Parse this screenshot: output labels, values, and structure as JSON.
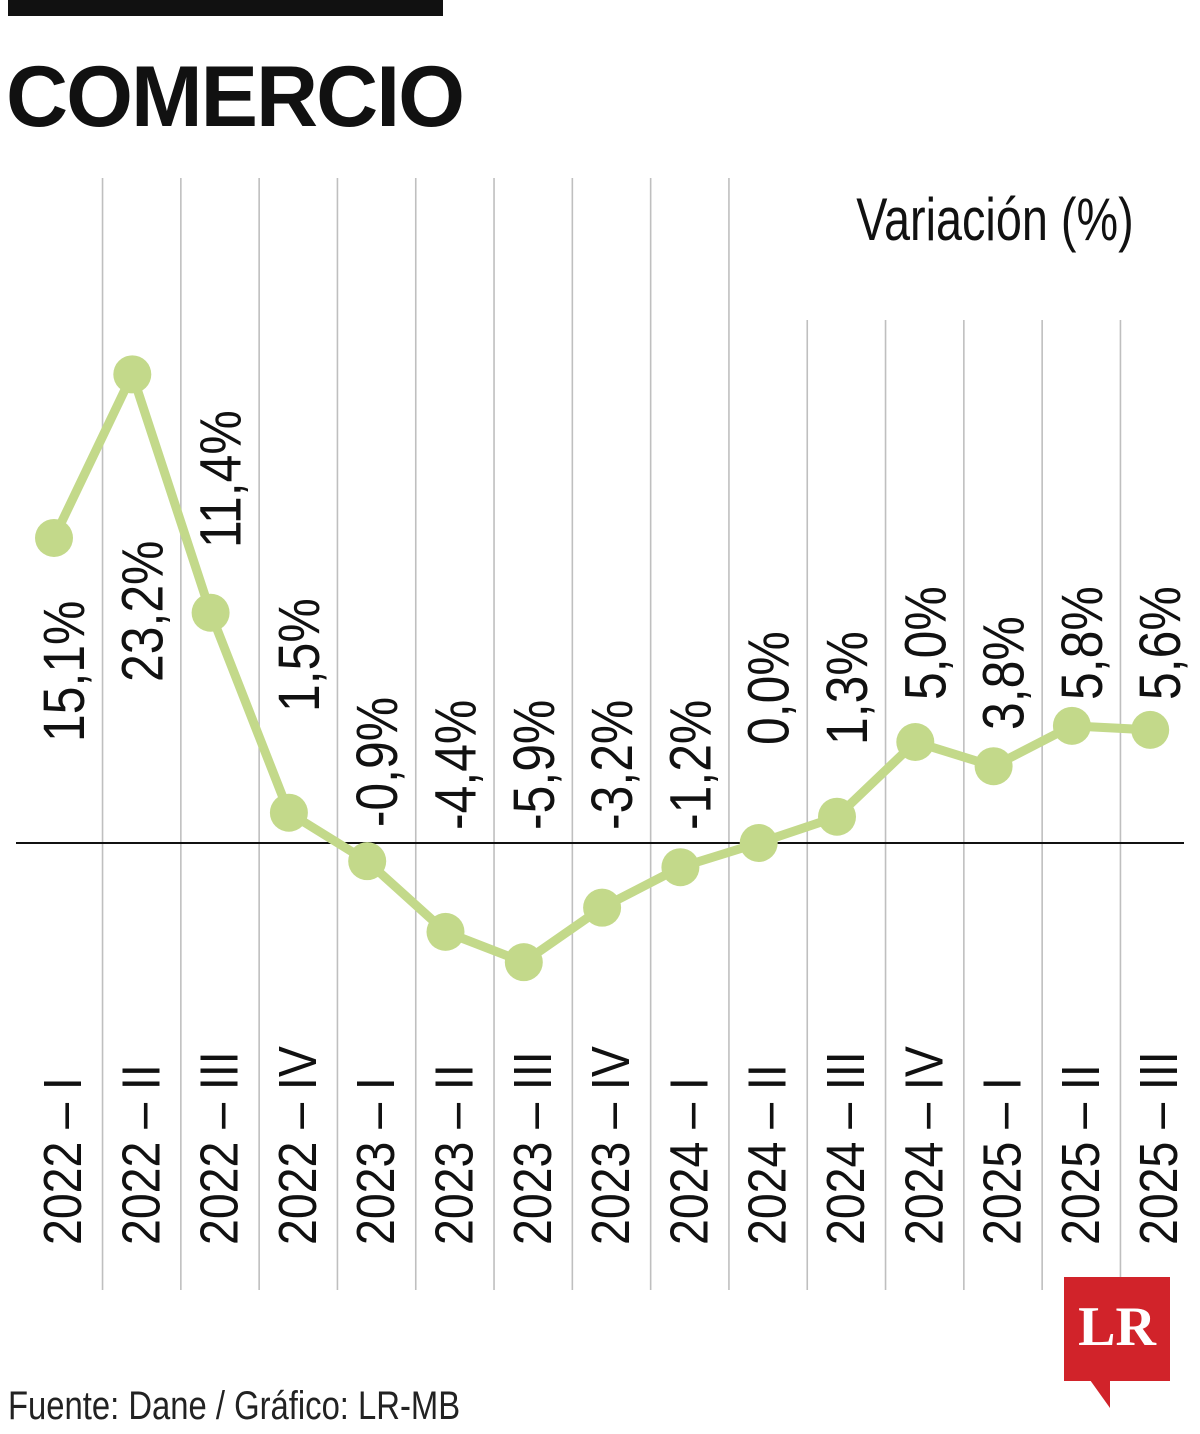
{
  "header": {
    "title": "COMERCIO",
    "unit_label": "Variación (%)"
  },
  "footer": {
    "source": "Fuente: Dane / Gráfico: LR-MB"
  },
  "logo": {
    "text": "LR",
    "color": "#d1232a"
  },
  "colors": {
    "line": "#c3d98a",
    "gridline": "#bfbfbf",
    "zero_line": "#111111"
  },
  "chart_data": {
    "type": "line",
    "title": "COMERCIO",
    "ylabel": "Variación (%)",
    "categories": [
      "2022 – I",
      "2022 – II",
      "2022 – III",
      "2022 – IV",
      "2023 – I",
      "2023 – II",
      "2023 – III",
      "2023 – IV",
      "2024 – I",
      "2024 – II",
      "2024 – III",
      "2024 – IV",
      "2025 – I",
      "2025 – II",
      "2025 – III"
    ],
    "values": [
      15.1,
      23.2,
      11.4,
      1.5,
      -0.9,
      -4.4,
      -5.9,
      -3.2,
      -1.2,
      0.0,
      1.3,
      5.0,
      3.8,
      5.8,
      5.6
    ],
    "value_labels": [
      "15,1%",
      "23,2%",
      "11,4%",
      "1,5%",
      "-0,9%",
      "-4,4%",
      "-5,9%",
      "-3,2%",
      "-1,2%",
      "0,0%",
      "1,3%",
      "5,0%",
      "3,8%",
      "5,8%",
      "5,6%"
    ],
    "ylim": [
      -10,
      25
    ],
    "grid": true,
    "zero_line": true,
    "legend": "none"
  }
}
